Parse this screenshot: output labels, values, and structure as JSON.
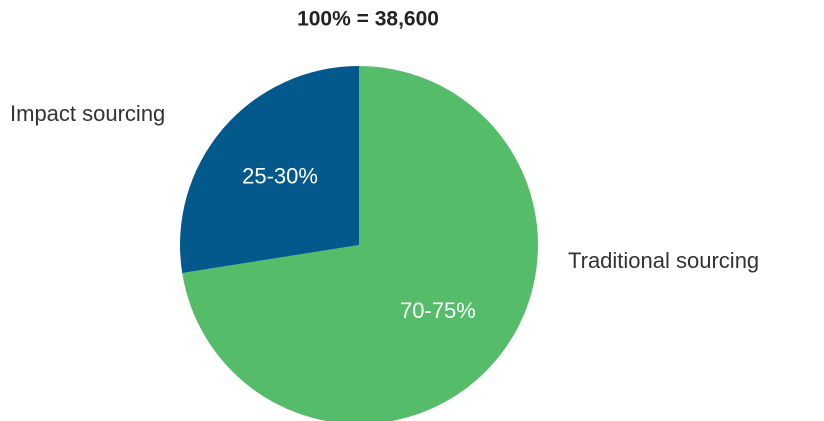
{
  "chart_data": {
    "type": "pie",
    "title": "100% = 38,600",
    "categories": [
      "Traditional sourcing",
      "Impact sourcing"
    ],
    "values": [
      72.5,
      27.5
    ],
    "value_labels": [
      "70-75%",
      "25-30%"
    ],
    "colors": [
      "#55bc69",
      "#03588c"
    ]
  }
}
